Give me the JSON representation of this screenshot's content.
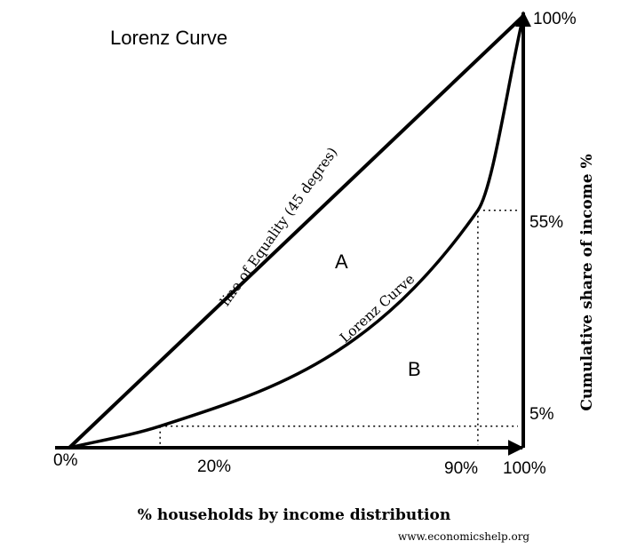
{
  "title": "Lorenz Curve",
  "lines": {
    "equality_label": "line of Equality (45 degres)",
    "lorenz_label": "Lorenz Curve"
  },
  "regions": {
    "a": "A",
    "b": "B"
  },
  "x_axis": {
    "label": "% households by income distribution",
    "ticks": {
      "origin": "0%",
      "p20": "20%",
      "p90": "90%",
      "end": "100%"
    }
  },
  "y_axis": {
    "label": "Cumulative share of income %",
    "ticks": {
      "top": "100%",
      "p55": "55%",
      "p5": "5%"
    }
  },
  "credit": "www.economicshelp.org",
  "chart_data": {
    "type": "line",
    "series": [
      {
        "name": "line of Equality (45 degres)",
        "x": [
          0,
          100
        ],
        "y": [
          0,
          100
        ]
      },
      {
        "name": "Lorenz Curve",
        "x": [
          0,
          20,
          90,
          100
        ],
        "y": [
          0,
          5,
          55,
          100
        ]
      }
    ],
    "highlighted_points": [
      {
        "x": 20,
        "y": 5
      },
      {
        "x": 90,
        "y": 55
      }
    ],
    "xlabel": "% households by income distribution",
    "ylabel": "Cumulative share of income %",
    "xlim": [
      0,
      100
    ],
    "ylim": [
      0,
      100
    ]
  }
}
